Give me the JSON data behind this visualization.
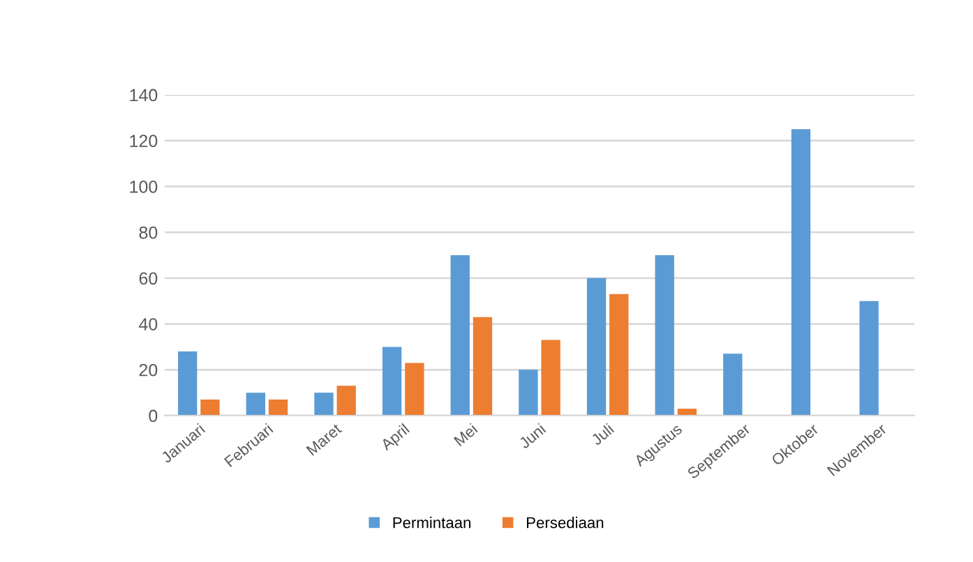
{
  "chart_data": {
    "type": "bar",
    "categories": [
      "Januari",
      "Februari",
      "Maret",
      "April",
      "Mei",
      "Juni",
      "Juli",
      "Agustus",
      "September",
      "Oktober",
      "November"
    ],
    "series": [
      {
        "name": "Permintaan",
        "color": "#5b9bd5",
        "values": [
          28,
          10,
          10,
          30,
          70,
          20,
          60,
          70,
          27,
          125,
          50
        ]
      },
      {
        "name": "Persediaan",
        "color": "#ed7d31",
        "values": [
          7,
          7,
          13,
          23,
          43,
          33,
          53,
          3,
          null,
          null,
          null
        ]
      }
    ],
    "ylim": [
      0,
      140
    ],
    "yticks": [
      0,
      20,
      40,
      60,
      80,
      100,
      120,
      140
    ],
    "grid": "y",
    "legend": "bottom"
  }
}
